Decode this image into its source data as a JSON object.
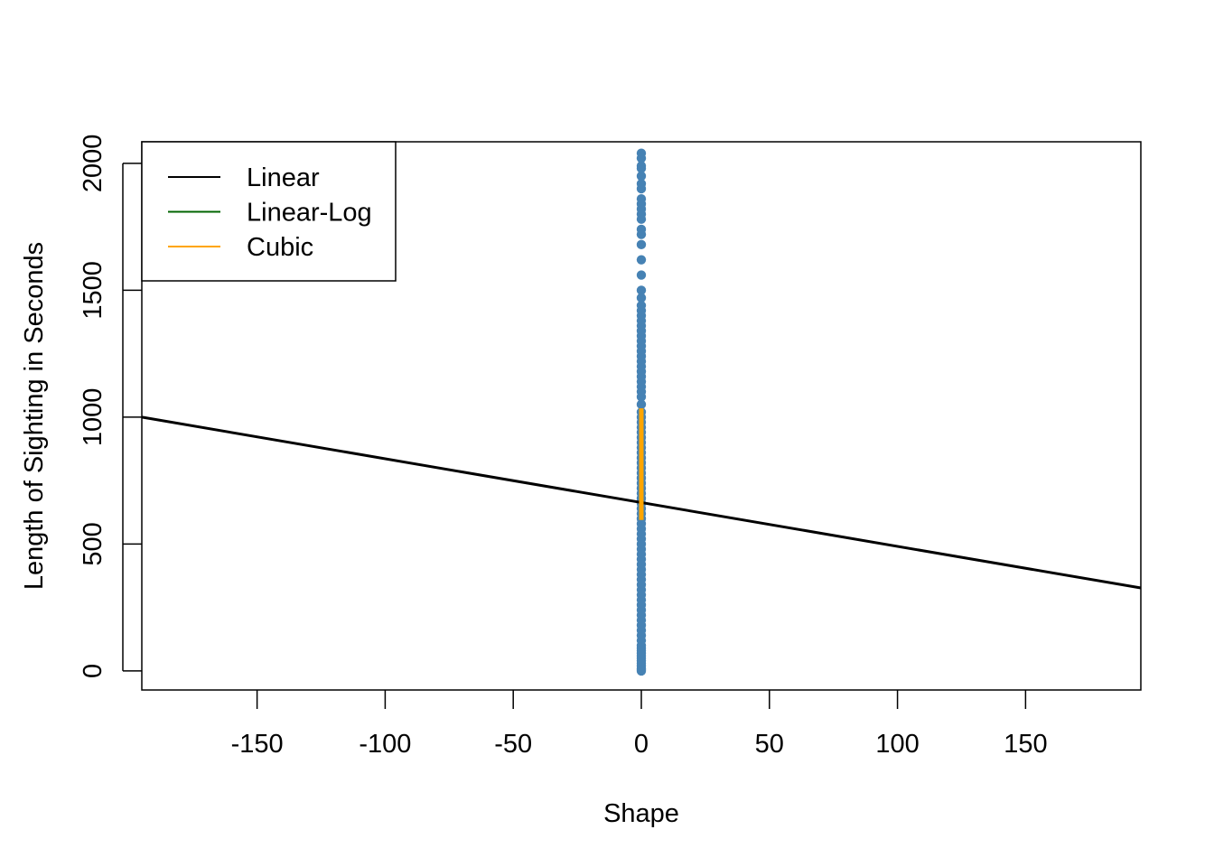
{
  "chart_data": {
    "type": "scatter",
    "title": "",
    "xlabel": "Shape",
    "ylabel": "Length of Sighting in Seconds",
    "xlim": [
      -195,
      195
    ],
    "ylim": [
      -75,
      2085
    ],
    "x_ticks": [
      -150,
      -100,
      -50,
      0,
      50,
      100,
      150
    ],
    "x_tick_labels": [
      "-150",
      "-100",
      "-50",
      "0",
      "50",
      "100",
      "150"
    ],
    "y_ticks": [
      0,
      500,
      1000,
      1500,
      2000
    ],
    "y_tick_labels": [
      "0",
      "500",
      "1000",
      "1500",
      "2000"
    ],
    "grid": false,
    "legend_position": "top-left",
    "legend": [
      {
        "label": "Linear",
        "color": "#000000"
      },
      {
        "label": "Linear-Log",
        "color": "#006400"
      },
      {
        "label": "Cubic",
        "color": "#FFA500"
      }
    ],
    "points": {
      "color": "#4682B4",
      "x": 0,
      "y": [
        2040,
        2020,
        1990,
        1980,
        1950,
        1920,
        1900,
        1860,
        1840,
        1820,
        1800,
        1780,
        1740,
        1720,
        1680,
        1620,
        1560,
        1500,
        1470,
        1440,
        1420,
        1400,
        1380,
        1360,
        1340,
        1320,
        1300,
        1280,
        1260,
        1240,
        1220,
        1200,
        1180,
        1160,
        1140,
        1120,
        1100,
        1080,
        1050,
        1020,
        1000,
        980,
        960,
        940,
        920,
        900,
        880,
        860,
        840,
        820,
        800,
        780,
        760,
        740,
        720,
        700,
        680,
        660,
        640,
        620,
        600,
        580,
        560,
        540,
        520,
        500,
        480,
        460,
        440,
        420,
        400,
        380,
        360,
        340,
        320,
        300,
        280,
        260,
        240,
        220,
        200,
        180,
        160,
        140,
        120,
        100,
        90,
        80,
        70,
        60,
        50,
        40,
        30,
        20,
        10,
        5,
        0
      ]
    },
    "series": [
      {
        "name": "Linear",
        "color": "#000000",
        "x": [
          -195,
          195
        ],
        "y": [
          1000,
          327
        ]
      },
      {
        "name": "Cubic",
        "color": "#FFA500",
        "x": [
          0,
          0
        ],
        "y": [
          595,
          1035
        ]
      }
    ]
  }
}
